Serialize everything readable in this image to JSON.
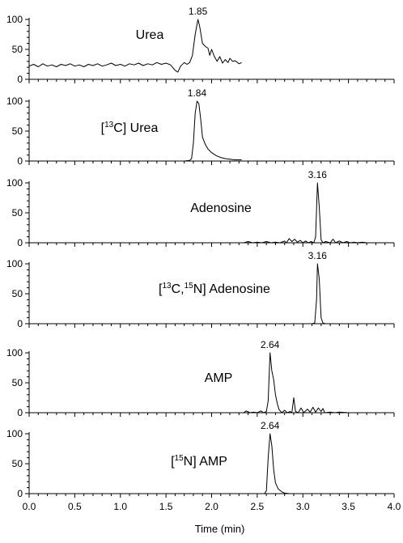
{
  "chart_data": {
    "type": "line",
    "xlabel": "Time (min)",
    "xlim": [
      0.0,
      4.0
    ],
    "xticks": [
      "0.0",
      "0.5",
      "1.0",
      "1.5",
      "2.0",
      "2.5",
      "3.0",
      "3.5",
      "4.0"
    ],
    "ylim": [
      0,
      100
    ],
    "yticks": [
      "0",
      "50",
      "100"
    ],
    "grid": false,
    "panels": [
      {
        "label_parts": [
          {
            "t": "Urea"
          }
        ],
        "peak_label": "1.85",
        "peak_x": 1.85,
        "points": [
          [
            0.0,
            22
          ],
          [
            0.05,
            25
          ],
          [
            0.1,
            21
          ],
          [
            0.15,
            26
          ],
          [
            0.2,
            22
          ],
          [
            0.25,
            24
          ],
          [
            0.3,
            21
          ],
          [
            0.35,
            25
          ],
          [
            0.4,
            23
          ],
          [
            0.45,
            26
          ],
          [
            0.5,
            22
          ],
          [
            0.55,
            24
          ],
          [
            0.6,
            21
          ],
          [
            0.65,
            25
          ],
          [
            0.7,
            23
          ],
          [
            0.75,
            26
          ],
          [
            0.8,
            22
          ],
          [
            0.85,
            24
          ],
          [
            0.9,
            27
          ],
          [
            0.95,
            23
          ],
          [
            1.0,
            25
          ],
          [
            1.05,
            22
          ],
          [
            1.1,
            26
          ],
          [
            1.15,
            24
          ],
          [
            1.2,
            27
          ],
          [
            1.25,
            23
          ],
          [
            1.3,
            26
          ],
          [
            1.35,
            24
          ],
          [
            1.4,
            28
          ],
          [
            1.45,
            25
          ],
          [
            1.5,
            27
          ],
          [
            1.55,
            24
          ],
          [
            1.6,
            15
          ],
          [
            1.63,
            12
          ],
          [
            1.66,
            22
          ],
          [
            1.7,
            28
          ],
          [
            1.73,
            25
          ],
          [
            1.76,
            28
          ],
          [
            1.79,
            40
          ],
          [
            1.82,
            75
          ],
          [
            1.85,
            100
          ],
          [
            1.87,
            88
          ],
          [
            1.9,
            60
          ],
          [
            1.93,
            55
          ],
          [
            1.96,
            52
          ],
          [
            1.98,
            40
          ],
          [
            2.0,
            50
          ],
          [
            2.03,
            38
          ],
          [
            2.06,
            30
          ],
          [
            2.09,
            38
          ],
          [
            2.12,
            27
          ],
          [
            2.15,
            33
          ],
          [
            2.18,
            28
          ],
          [
            2.2,
            35
          ],
          [
            2.23,
            30
          ],
          [
            2.26,
            31
          ],
          [
            2.3,
            26
          ],
          [
            2.33,
            28
          ]
        ]
      },
      {
        "label_parts": [
          {
            "t": "["
          },
          {
            "t": "13",
            "sup": true
          },
          {
            "t": "C] Urea"
          }
        ],
        "peak_label": "1.84",
        "peak_x": 1.84,
        "points": [
          [
            0.0,
            0
          ],
          [
            1.5,
            0
          ],
          [
            1.7,
            0
          ],
          [
            1.76,
            1
          ],
          [
            1.78,
            4
          ],
          [
            1.8,
            30
          ],
          [
            1.82,
            80
          ],
          [
            1.84,
            100
          ],
          [
            1.86,
            96
          ],
          [
            1.88,
            70
          ],
          [
            1.9,
            40
          ],
          [
            1.93,
            28
          ],
          [
            1.96,
            20
          ],
          [
            2.0,
            14
          ],
          [
            2.05,
            9
          ],
          [
            2.1,
            6
          ],
          [
            2.15,
            4
          ],
          [
            2.2,
            3
          ],
          [
            2.25,
            2
          ],
          [
            2.33,
            2
          ]
        ]
      },
      {
        "label_parts": [
          {
            "t": "Adenosine"
          }
        ],
        "peak_label": "3.16",
        "peak_x": 3.16,
        "points": [
          [
            2.35,
            0
          ],
          [
            2.4,
            2
          ],
          [
            2.45,
            0
          ],
          [
            2.5,
            1
          ],
          [
            2.55,
            0
          ],
          [
            2.6,
            2
          ],
          [
            2.65,
            0
          ],
          [
            2.7,
            1
          ],
          [
            2.75,
            0
          ],
          [
            2.8,
            3
          ],
          [
            2.82,
            0
          ],
          [
            2.85,
            7
          ],
          [
            2.88,
            2
          ],
          [
            2.91,
            6
          ],
          [
            2.94,
            1
          ],
          [
            2.97,
            4
          ],
          [
            3.0,
            0
          ],
          [
            3.03,
            3
          ],
          [
            3.06,
            0
          ],
          [
            3.09,
            2
          ],
          [
            3.12,
            0
          ],
          [
            3.14,
            10
          ],
          [
            3.16,
            100
          ],
          [
            3.18,
            60
          ],
          [
            3.2,
            5
          ],
          [
            3.22,
            0
          ],
          [
            3.25,
            2
          ],
          [
            3.3,
            0
          ],
          [
            3.33,
            6
          ],
          [
            3.36,
            0
          ],
          [
            3.4,
            3
          ],
          [
            3.44,
            0
          ],
          [
            3.48,
            2
          ],
          [
            3.52,
            0
          ],
          [
            3.56,
            1
          ],
          [
            3.6,
            0
          ],
          [
            3.65,
            1
          ],
          [
            3.7,
            0
          ],
          [
            3.73,
            0
          ]
        ]
      },
      {
        "label_parts": [
          {
            "t": "["
          },
          {
            "t": "13",
            "sup": true
          },
          {
            "t": "C,"
          },
          {
            "t": "15",
            "sup": true
          },
          {
            "t": "N] Adenosine"
          }
        ],
        "peak_label": "3.16",
        "peak_x": 3.16,
        "points": [
          [
            2.35,
            0
          ],
          [
            3.1,
            0
          ],
          [
            3.13,
            1
          ],
          [
            3.15,
            40
          ],
          [
            3.16,
            100
          ],
          [
            3.18,
            75
          ],
          [
            3.2,
            10
          ],
          [
            3.22,
            1
          ],
          [
            3.25,
            0
          ],
          [
            3.73,
            0
          ]
        ]
      },
      {
        "label_parts": [
          {
            "t": "AMP"
          }
        ],
        "peak_label": "2.64",
        "peak_x": 2.64,
        "points": [
          [
            2.35,
            0
          ],
          [
            2.38,
            3
          ],
          [
            2.42,
            0
          ],
          [
            2.46,
            1
          ],
          [
            2.5,
            0
          ],
          [
            2.54,
            3
          ],
          [
            2.57,
            0
          ],
          [
            2.6,
            2
          ],
          [
            2.62,
            20
          ],
          [
            2.64,
            100
          ],
          [
            2.66,
            70
          ],
          [
            2.68,
            55
          ],
          [
            2.7,
            30
          ],
          [
            2.72,
            15
          ],
          [
            2.74,
            5
          ],
          [
            2.77,
            0
          ],
          [
            2.8,
            4
          ],
          [
            2.83,
            0
          ],
          [
            2.86,
            2
          ],
          [
            2.88,
            0
          ],
          [
            2.9,
            25
          ],
          [
            2.92,
            2
          ],
          [
            2.95,
            0
          ],
          [
            2.98,
            8
          ],
          [
            3.01,
            0
          ],
          [
            3.05,
            6
          ],
          [
            3.08,
            1
          ],
          [
            3.11,
            9
          ],
          [
            3.14,
            1
          ],
          [
            3.17,
            8
          ],
          [
            3.2,
            2
          ],
          [
            3.22,
            7
          ],
          [
            3.24,
            0
          ],
          [
            3.3,
            1
          ],
          [
            3.35,
            0
          ],
          [
            3.4,
            1
          ],
          [
            3.5,
            0
          ],
          [
            3.6,
            0
          ],
          [
            3.73,
            0
          ]
        ]
      },
      {
        "label_parts": [
          {
            "t": "["
          },
          {
            "t": "15",
            "sup": true
          },
          {
            "t": "N] AMP"
          }
        ],
        "peak_label": "2.64",
        "peak_x": 2.64,
        "points": [
          [
            2.35,
            0
          ],
          [
            2.58,
            0
          ],
          [
            2.6,
            5
          ],
          [
            2.62,
            60
          ],
          [
            2.64,
            100
          ],
          [
            2.66,
            80
          ],
          [
            2.68,
            40
          ],
          [
            2.7,
            18
          ],
          [
            2.73,
            8
          ],
          [
            2.77,
            3
          ],
          [
            2.8,
            1
          ],
          [
            2.85,
            0
          ],
          [
            3.0,
            0
          ],
          [
            3.73,
            0
          ]
        ]
      }
    ]
  }
}
